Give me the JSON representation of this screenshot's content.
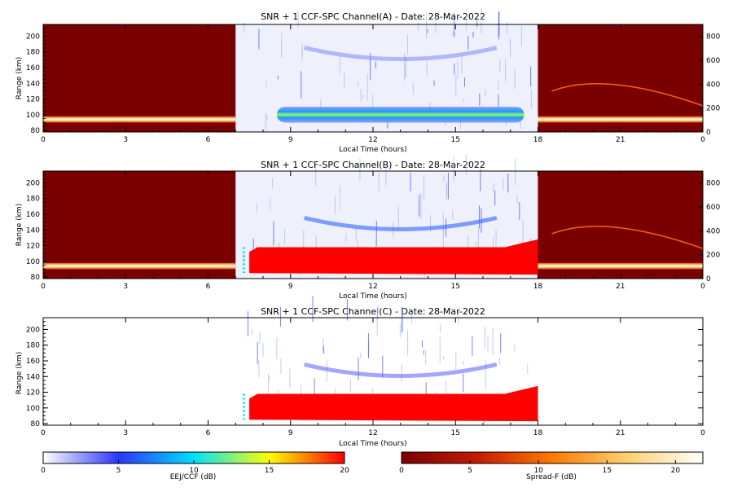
{
  "chart_data": [
    {
      "type": "heatmap",
      "title": "SNR + 1 CCF-SPC Channel(A) - Date: 28-Mar-2022",
      "xlabel": "Local Time (hours)",
      "ylabel": "Range (km)",
      "xlim": [
        0,
        24
      ],
      "ylim": [
        78,
        215
      ],
      "xticks": [
        "0",
        "3",
        "6",
        "9",
        "12",
        "15",
        "18",
        "21",
        "0"
      ],
      "yticks": [
        80,
        100,
        120,
        140,
        160,
        180,
        200
      ],
      "y2lim": [
        0,
        900
      ],
      "y2ticks": [
        0,
        200,
        400,
        600,
        800
      ],
      "night_segments": [
        [
          0,
          7
        ],
        [
          18,
          24
        ]
      ],
      "day_window": [
        7,
        18
      ],
      "features": [
        {
          "kind": "night_layer",
          "t0": 0,
          "t1": 7,
          "range_km": 94,
          "db": 22
        },
        {
          "kind": "night_layer",
          "t0": 18,
          "t1": 24,
          "range_km": 94,
          "db": 22
        },
        {
          "kind": "eej_layer",
          "t0": 8.5,
          "t1": 17.5,
          "range_km": 100,
          "db": 9
        },
        {
          "kind": "echo_150km",
          "t0": 9.5,
          "t1": 16.5,
          "range_km": 175,
          "db": 3
        },
        {
          "kind": "spread_f_trace",
          "t0": 18.5,
          "t1": 24,
          "range_km": 130,
          "db": 10
        }
      ]
    },
    {
      "type": "heatmap",
      "title": "SNR + 1 CCF-SPC Channel(B) - Date: 28-Mar-2022",
      "xlabel": "Local Time (hours)",
      "ylabel": "Range (km)",
      "xlim": [
        0,
        24
      ],
      "ylim": [
        78,
        215
      ],
      "xticks": [
        "0",
        "3",
        "6",
        "9",
        "12",
        "15",
        "18",
        "21",
        "0"
      ],
      "yticks": [
        80,
        100,
        120,
        140,
        160,
        180,
        200
      ],
      "y2lim": [
        0,
        900
      ],
      "y2ticks": [
        0,
        200,
        400,
        600,
        800
      ],
      "night_segments": [
        [
          0,
          7
        ],
        [
          18,
          24
        ]
      ],
      "day_window": [
        7,
        18
      ],
      "features": [
        {
          "kind": "night_layer",
          "t0": 0,
          "t1": 7,
          "range_km": 94,
          "db": 22
        },
        {
          "kind": "night_layer",
          "t0": 18,
          "t1": 24,
          "range_km": 94,
          "db": 22
        },
        {
          "kind": "eej_saturated",
          "t0": 7.5,
          "t1": 18,
          "range_min_km": 85,
          "range_max_km": 118,
          "db": 20
        },
        {
          "kind": "echo_150km",
          "t0": 9.5,
          "t1": 16.5,
          "range_km": 145,
          "db": 6
        },
        {
          "kind": "spread_f_trace",
          "t0": 18.5,
          "t1": 24,
          "range_km": 135,
          "db": 10
        }
      ]
    },
    {
      "type": "heatmap",
      "title": "SNR + 1 CCF-SPC Channel(C) - Date: 28-Mar-2022",
      "xlabel": "Local Time (hours)",
      "ylabel": "Range (km)",
      "xlim": [
        0,
        24
      ],
      "ylim": [
        78,
        215
      ],
      "xticks": [
        "0",
        "3",
        "6",
        "9",
        "12",
        "15",
        "18",
        "21",
        "0"
      ],
      "yticks": [
        80,
        100,
        120,
        140,
        160,
        180,
        200
      ],
      "night_segments": [],
      "day_window": [
        7,
        18
      ],
      "features": [
        {
          "kind": "eej_saturated",
          "t0": 7.5,
          "t1": 18,
          "range_min_km": 85,
          "range_max_km": 118,
          "db": 20
        },
        {
          "kind": "echo_150km",
          "t0": 9.5,
          "t1": 16.5,
          "range_km": 145,
          "db": 4
        }
      ]
    }
  ],
  "colorbars": [
    {
      "label": "EEJ/CCF (dB)",
      "min": 0,
      "max": 20,
      "ticks": [
        0,
        5,
        10,
        15,
        20
      ],
      "colors": [
        "#ffffff",
        "#2a35ff",
        "#00e0ff",
        "#ffff00",
        "#ff0000"
      ]
    },
    {
      "label": "Spread-F (dB)",
      "min": 0,
      "max": 22,
      "ticks": [
        0,
        5,
        10,
        15,
        20
      ],
      "colors": [
        "#7a0000",
        "#c41a00",
        "#ff7a00",
        "#ffd070",
        "#ffffff"
      ]
    }
  ]
}
